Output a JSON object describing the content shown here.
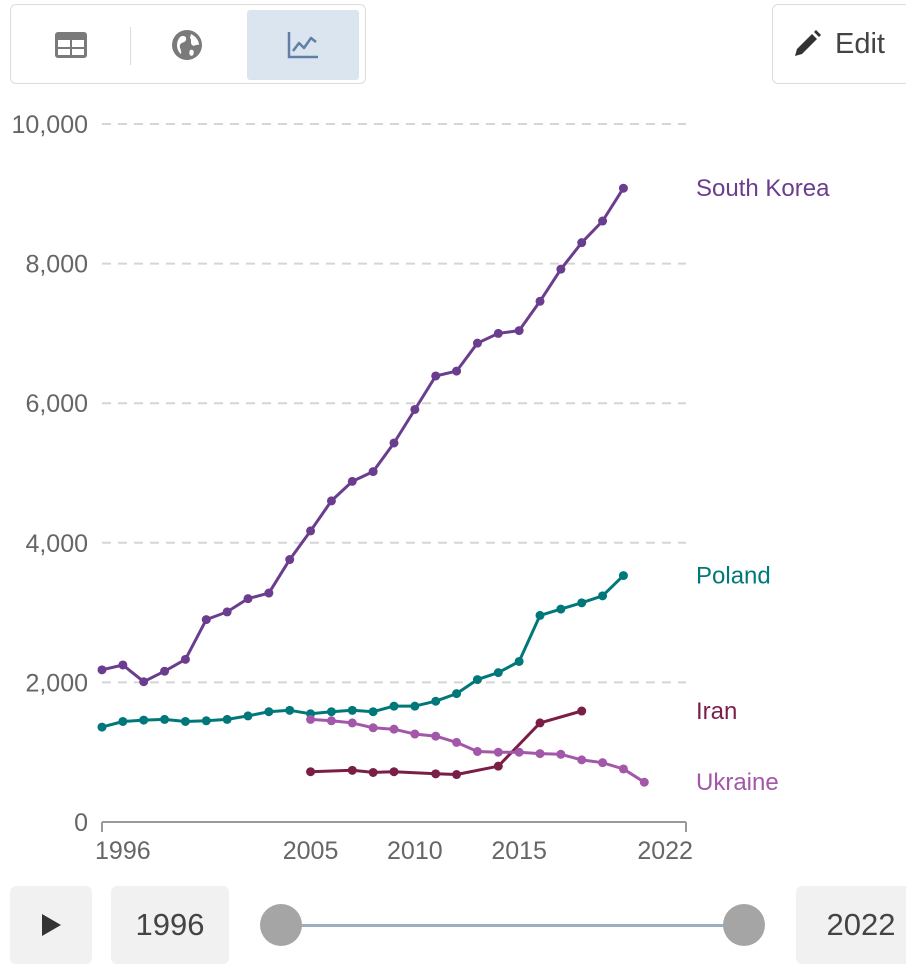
{
  "toolbar": {
    "views": [
      {
        "id": "table",
        "icon": "table-icon",
        "active": false
      },
      {
        "id": "map",
        "icon": "globe-icon",
        "active": false
      },
      {
        "id": "chart",
        "icon": "line-chart-icon",
        "active": true
      }
    ],
    "edit_label": "Edit",
    "edit_icon": "pencil-icon"
  },
  "chart_data": {
    "type": "line",
    "xlim": [
      1995,
      2023
    ],
    "ylim": [
      0,
      10000
    ],
    "y_ticks": [
      0,
      2000,
      4000,
      6000,
      8000,
      10000
    ],
    "y_tick_labels": [
      "0",
      "2,000",
      "4,000",
      "6,000",
      "8,000",
      "10,000"
    ],
    "x_ticks": [
      1996,
      2005,
      2010,
      2015,
      2022
    ],
    "x_tick_labels": [
      "1996",
      "2005",
      "2010",
      "2015",
      "2022"
    ],
    "grid": "horizontal dashed",
    "legend": "inline labels at line ends",
    "series": [
      {
        "name": "South Korea",
        "color": "#6a3d8f",
        "points": [
          [
            1995,
            2180
          ],
          [
            1996,
            2250
          ],
          [
            1997,
            2010
          ],
          [
            1998,
            2160
          ],
          [
            1999,
            2330
          ],
          [
            2000,
            2900
          ],
          [
            2001,
            3010
          ],
          [
            2002,
            3200
          ],
          [
            2003,
            3280
          ],
          [
            2004,
            3760
          ],
          [
            2005,
            4170
          ],
          [
            2006,
            4600
          ],
          [
            2007,
            4880
          ],
          [
            2008,
            5020
          ],
          [
            2009,
            5430
          ],
          [
            2010,
            5910
          ],
          [
            2011,
            6390
          ],
          [
            2012,
            6460
          ],
          [
            2013,
            6860
          ],
          [
            2014,
            7000
          ],
          [
            2015,
            7040
          ],
          [
            2016,
            7460
          ],
          [
            2017,
            7920
          ],
          [
            2018,
            8300
          ],
          [
            2019,
            8610
          ],
          [
            2020,
            9080
          ]
        ]
      },
      {
        "name": "Poland",
        "color": "#00787a",
        "points": [
          [
            1995,
            1360
          ],
          [
            1996,
            1440
          ],
          [
            1997,
            1460
          ],
          [
            1998,
            1470
          ],
          [
            1999,
            1440
          ],
          [
            2000,
            1450
          ],
          [
            2001,
            1470
          ],
          [
            2002,
            1520
          ],
          [
            2003,
            1580
          ],
          [
            2004,
            1600
          ],
          [
            2005,
            1550
          ],
          [
            2006,
            1580
          ],
          [
            2007,
            1600
          ],
          [
            2008,
            1580
          ],
          [
            2009,
            1660
          ],
          [
            2010,
            1660
          ],
          [
            2011,
            1730
          ],
          [
            2012,
            1840
          ],
          [
            2013,
            2040
          ],
          [
            2014,
            2140
          ],
          [
            2015,
            2300
          ],
          [
            2016,
            2960
          ],
          [
            2017,
            3050
          ],
          [
            2018,
            3140
          ],
          [
            2019,
            3240
          ],
          [
            2020,
            3530
          ]
        ]
      },
      {
        "name": "Iran",
        "color": "#7a1e47",
        "points": [
          [
            2005,
            720
          ],
          [
            2007,
            740
          ],
          [
            2008,
            710
          ],
          [
            2009,
            720
          ],
          [
            2011,
            690
          ],
          [
            2012,
            680
          ],
          [
            2014,
            800
          ],
          [
            2016,
            1420
          ],
          [
            2018,
            1590
          ]
        ]
      },
      {
        "name": "Ukraine",
        "color": "#a357a8",
        "points": [
          [
            2005,
            1470
          ],
          [
            2006,
            1450
          ],
          [
            2007,
            1420
          ],
          [
            2008,
            1350
          ],
          [
            2009,
            1330
          ],
          [
            2010,
            1260
          ],
          [
            2011,
            1230
          ],
          [
            2012,
            1140
          ],
          [
            2013,
            1010
          ],
          [
            2014,
            1000
          ],
          [
            2015,
            1000
          ],
          [
            2016,
            980
          ],
          [
            2017,
            970
          ],
          [
            2018,
            890
          ],
          [
            2019,
            850
          ],
          [
            2020,
            760
          ],
          [
            2021,
            570
          ]
        ]
      }
    ]
  },
  "timeline": {
    "play_icon": "play-icon",
    "start_year": "1996",
    "end_year": "2022"
  }
}
